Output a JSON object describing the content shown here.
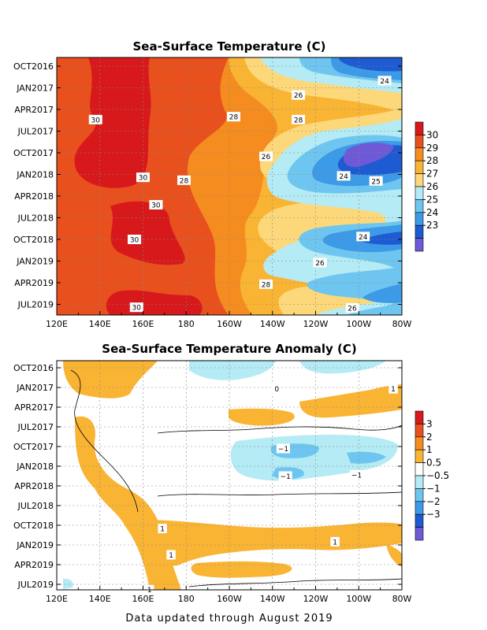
{
  "chart_data": [
    {
      "type": "heatmap",
      "title": "Sea-Surface Temperature (C)",
      "xlabel": "",
      "ylabel": "",
      "x_ticks": [
        "120E",
        "140E",
        "160E",
        "180",
        "160W",
        "140W",
        "120W",
        "100W",
        "80W"
      ],
      "y_ticks": [
        "OCT2016",
        "JAN2017",
        "APR2017",
        "JUL2017",
        "OCT2017",
        "JAN2018",
        "APR2018",
        "JUL2018",
        "OCT2018",
        "JAN2019",
        "APR2019",
        "JUL2019"
      ],
      "colorbar": {
        "labels": [
          "30",
          "29",
          "28",
          "27",
          "26",
          "25",
          "24",
          "23"
        ],
        "colors": [
          "#d7191c",
          "#e8501e",
          "#f58c1f",
          "#f9b433",
          "#fcd87a",
          "#b4ebf5",
          "#6ec6f0",
          "#3c9ae6",
          "#1e5ad2",
          "#6e5ad7"
        ]
      },
      "contour_labels": [
        {
          "text": "24",
          "lon": -88,
          "month": 2
        },
        {
          "text": "26",
          "lon": -128,
          "month": 4
        },
        {
          "text": "28",
          "lon": -158,
          "month": 7
        },
        {
          "text": "28",
          "lon": -128,
          "month": 7.4
        },
        {
          "text": "30",
          "lon": 138,
          "month": 7.4
        },
        {
          "text": "26",
          "lon": -143,
          "month": 12.5
        },
        {
          "text": "24",
          "lon": -107,
          "month": 15.2
        },
        {
          "text": "25",
          "lon": -92,
          "month": 15.9
        },
        {
          "text": "30",
          "lon": 160,
          "month": 15.4
        },
        {
          "text": "28",
          "lon": 179,
          "month": 15.8
        },
        {
          "text": "30",
          "lon": 166,
          "month": 19.2
        },
        {
          "text": "30",
          "lon": 156,
          "month": 24
        },
        {
          "text": "24",
          "lon": -98,
          "month": 23.6
        },
        {
          "text": "26",
          "lon": -118,
          "month": 27.2
        },
        {
          "text": "28",
          "lon": -143,
          "month": 30.2
        },
        {
          "text": "26",
          "lon": -103,
          "month": 33.5
        },
        {
          "text": "30",
          "lon": 157,
          "month": 33.4
        }
      ]
    },
    {
      "type": "heatmap",
      "title": "Sea-Surface Temperature Anomaly (C)",
      "xlabel": "",
      "ylabel": "",
      "x_ticks": [
        "120E",
        "140E",
        "160E",
        "180",
        "160W",
        "140W",
        "120W",
        "100W",
        "80W"
      ],
      "y_ticks": [
        "OCT2016",
        "JAN2017",
        "APR2017",
        "JUL2017",
        "OCT2017",
        "JAN2018",
        "APR2018",
        "JUL2018",
        "OCT2018",
        "JAN2019",
        "APR2019",
        "JUL2019"
      ],
      "colorbar": {
        "labels": [
          "3",
          "2",
          "1",
          "0.5",
          "−0.5",
          "−1",
          "−2",
          "−3"
        ],
        "colors": [
          "#d7191c",
          "#e8501e",
          "#f58c1f",
          "#f9b433",
          "#ffffff",
          "#b4ebf5",
          "#6ec6f0",
          "#3c9ae6",
          "#1e5ad2",
          "#6e5ad7"
        ]
      },
      "contour_labels": [
        {
          "text": "1",
          "lon": -84,
          "month": 3.2
        },
        {
          "text": "0",
          "lon": -138,
          "month": 3.2
        },
        {
          "text": "−1",
          "lon": -135,
          "month": 12.3
        },
        {
          "text": "−1",
          "lon": -134,
          "month": 16.5
        },
        {
          "text": "−1",
          "lon": -101,
          "month": 16.3
        },
        {
          "text": "1",
          "lon": 169,
          "month": 24.5
        },
        {
          "text": "1",
          "lon": -111,
          "month": 26.5
        },
        {
          "text": "1",
          "lon": 173,
          "month": 28.5
        },
        {
          "text": "1",
          "lon": 163,
          "month": 33.8
        }
      ]
    }
  ],
  "footer": "Data updated through August 2019"
}
